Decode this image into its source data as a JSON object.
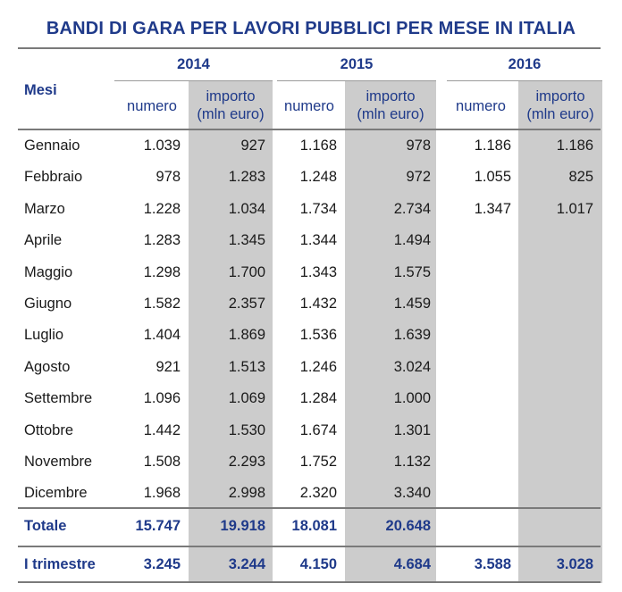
{
  "title": "BANDI DI GARA PER LAVORI PUBBLICI PER MESE IN ITALIA",
  "header": {
    "row_label": "Mesi",
    "years": [
      "2014",
      "2015",
      "2016"
    ],
    "numero": "numero",
    "importo_l1": "importo",
    "importo_l2": "(mln euro)"
  },
  "rows": [
    {
      "mese": "Gennaio",
      "n2014": "1.039",
      "i2014": "927",
      "n2015": "1.168",
      "i2015": "978",
      "n2016": "1.186",
      "i2016": "1.186"
    },
    {
      "mese": "Febbraio",
      "n2014": "978",
      "i2014": "1.283",
      "n2015": "1.248",
      "i2015": "972",
      "n2016": "1.055",
      "i2016": "825"
    },
    {
      "mese": "Marzo",
      "n2014": "1.228",
      "i2014": "1.034",
      "n2015": "1.734",
      "i2015": "2.734",
      "n2016": "1.347",
      "i2016": "1.017"
    },
    {
      "mese": "Aprile",
      "n2014": "1.283",
      "i2014": "1.345",
      "n2015": "1.344",
      "i2015": "1.494",
      "n2016": "",
      "i2016": ""
    },
    {
      "mese": "Maggio",
      "n2014": "1.298",
      "i2014": "1.700",
      "n2015": "1.343",
      "i2015": "1.575",
      "n2016": "",
      "i2016": ""
    },
    {
      "mese": "Giugno",
      "n2014": "1.582",
      "i2014": "2.357",
      "n2015": "1.432",
      "i2015": "1.459",
      "n2016": "",
      "i2016": ""
    },
    {
      "mese": "Luglio",
      "n2014": "1.404",
      "i2014": "1.869",
      "n2015": "1.536",
      "i2015": "1.639",
      "n2016": "",
      "i2016": ""
    },
    {
      "mese": "Agosto",
      "n2014": "921",
      "i2014": "1.513",
      "n2015": "1.246",
      "i2015": "3.024",
      "n2016": "",
      "i2016": ""
    },
    {
      "mese": "Settembre",
      "n2014": "1.096",
      "i2014": "1.069",
      "n2015": "1.284",
      "i2015": "1.000",
      "n2016": "",
      "i2016": ""
    },
    {
      "mese": "Ottobre",
      "n2014": "1.442",
      "i2014": "1.530",
      "n2015": "1.674",
      "i2015": "1.301",
      "n2016": "",
      "i2016": ""
    },
    {
      "mese": "Novembre",
      "n2014": "1.508",
      "i2014": "2.293",
      "n2015": "1.752",
      "i2015": "1.132",
      "n2016": "",
      "i2016": ""
    },
    {
      "mese": "Dicembre",
      "n2014": "1.968",
      "i2014": "2.998",
      "n2015": "2.320",
      "i2015": "3.340",
      "n2016": "",
      "i2016": ""
    }
  ],
  "totale": {
    "mese": "Totale",
    "n2014": "15.747",
    "i2014": "19.918",
    "n2015": "18.081",
    "i2015": "20.648",
    "n2016": "",
    "i2016": ""
  },
  "trimestre": {
    "mese": "I trimestre",
    "n2014": "3.245",
    "i2014": "3.244",
    "n2015": "4.150",
    "i2015": "4.684",
    "n2016": "3.588",
    "i2016": "3.028"
  }
}
